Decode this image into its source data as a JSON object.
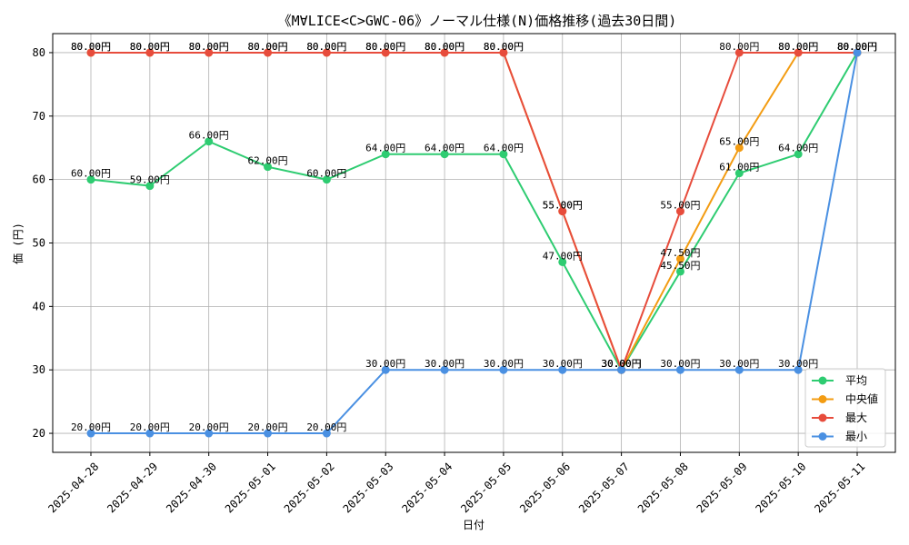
{
  "chart_data": {
    "type": "line",
    "title": "《M∀LICE<C>GWC-06》ノーマル仕様(N)価格推移(過去30日間)",
    "xlabel": "日付",
    "ylabel": "価 (円)",
    "categories": [
      "2025-04-28",
      "2025-04-29",
      "2025-04-30",
      "2025-05-01",
      "2025-05-02",
      "2025-05-03",
      "2025-05-04",
      "2025-05-05",
      "2025-05-06",
      "2025-05-07",
      "2025-05-08",
      "2025-05-09",
      "2025-05-10",
      "2025-05-11"
    ],
    "ylim": [
      17,
      83
    ],
    "yticks": [
      20,
      30,
      40,
      50,
      60,
      70,
      80
    ],
    "grid": true,
    "legend_position": "bottom-right",
    "label_suffix": "円",
    "series": [
      {
        "name": "平均",
        "color": "#2ecc71",
        "values": [
          60,
          59,
          66,
          62,
          60,
          64,
          64,
          64,
          47,
          30,
          45.5,
          61,
          64,
          80
        ]
      },
      {
        "name": "中央値",
        "color": "#f39c12",
        "values": [
          80,
          80,
          80,
          80,
          80,
          80,
          80,
          80,
          55,
          30,
          47.5,
          65,
          80,
          80
        ]
      },
      {
        "name": "最大",
        "color": "#e74c3c",
        "values": [
          80,
          80,
          80,
          80,
          80,
          80,
          80,
          80,
          55,
          30,
          55,
          80,
          80,
          80
        ]
      },
      {
        "name": "最小",
        "color": "#4a90e2",
        "values": [
          20,
          20,
          20,
          20,
          20,
          30,
          30,
          30,
          30,
          30,
          30,
          30,
          30,
          80
        ]
      }
    ]
  }
}
